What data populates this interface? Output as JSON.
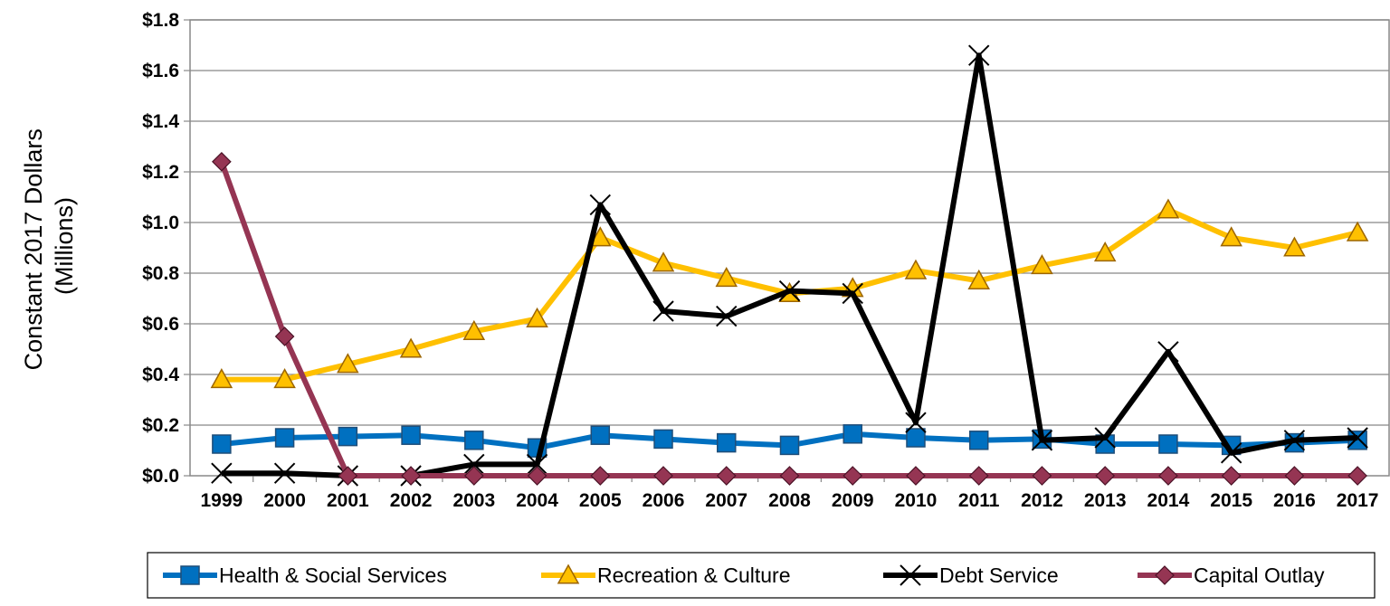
{
  "chart_data": {
    "type": "line",
    "title": "",
    "ylabel": "Constant 2017 Dollars (Millions)",
    "ylabel_lines": [
      "Constant 2017 Dollars",
      "(Millions)"
    ],
    "xlabel": "",
    "categories": [
      "1999",
      "2000",
      "2001",
      "2002",
      "2003",
      "2004",
      "2005",
      "2006",
      "2007",
      "2008",
      "2009",
      "2010",
      "2011",
      "2012",
      "2013",
      "2014",
      "2015",
      "2016",
      "2017"
    ],
    "ylim": [
      0,
      1.8
    ],
    "yticks": [
      0,
      0.2,
      0.4,
      0.6,
      0.8,
      1.0,
      1.2,
      1.4,
      1.6,
      1.8
    ],
    "ytick_labels": [
      "$0.0",
      "$0.2",
      "$0.4",
      "$0.6",
      "$0.8",
      "$1.0",
      "$1.2",
      "$1.4",
      "$1.6",
      "$1.8"
    ],
    "grid": true,
    "legend_position": "bottom",
    "series": [
      {
        "name": "Health & Social Services",
        "color": "#0070C0",
        "marker": "square",
        "values": [
          0.125,
          0.15,
          0.155,
          0.16,
          0.14,
          0.11,
          0.16,
          0.145,
          0.13,
          0.12,
          0.165,
          0.15,
          0.14,
          0.145,
          0.125,
          0.125,
          0.12,
          0.13,
          0.14
        ]
      },
      {
        "name": "Recreation & Culture",
        "color": "#FFC000",
        "marker": "triangle",
        "values": [
          0.38,
          0.38,
          0.44,
          0.5,
          0.57,
          0.62,
          0.94,
          0.84,
          0.78,
          0.72,
          0.74,
          0.81,
          0.77,
          0.83,
          0.88,
          1.05,
          0.94,
          0.9,
          0.96
        ]
      },
      {
        "name": "Debt Service",
        "color": "#000000",
        "marker": "x",
        "values": [
          0.01,
          0.01,
          0.0,
          0.0,
          0.045,
          0.045,
          1.07,
          0.65,
          0.63,
          0.73,
          0.72,
          0.21,
          1.66,
          0.14,
          0.15,
          0.49,
          0.09,
          0.14,
          0.15
        ]
      },
      {
        "name": "Capital Outlay",
        "color": "#953553",
        "marker": "diamond",
        "values": [
          1.24,
          0.55,
          0.0,
          0.0,
          0.0,
          0.0,
          0.0,
          0.0,
          0.0,
          0.0,
          0.0,
          0.0,
          0.0,
          0.0,
          0.0,
          0.0,
          0.0,
          0.0,
          0.0
        ]
      }
    ]
  }
}
